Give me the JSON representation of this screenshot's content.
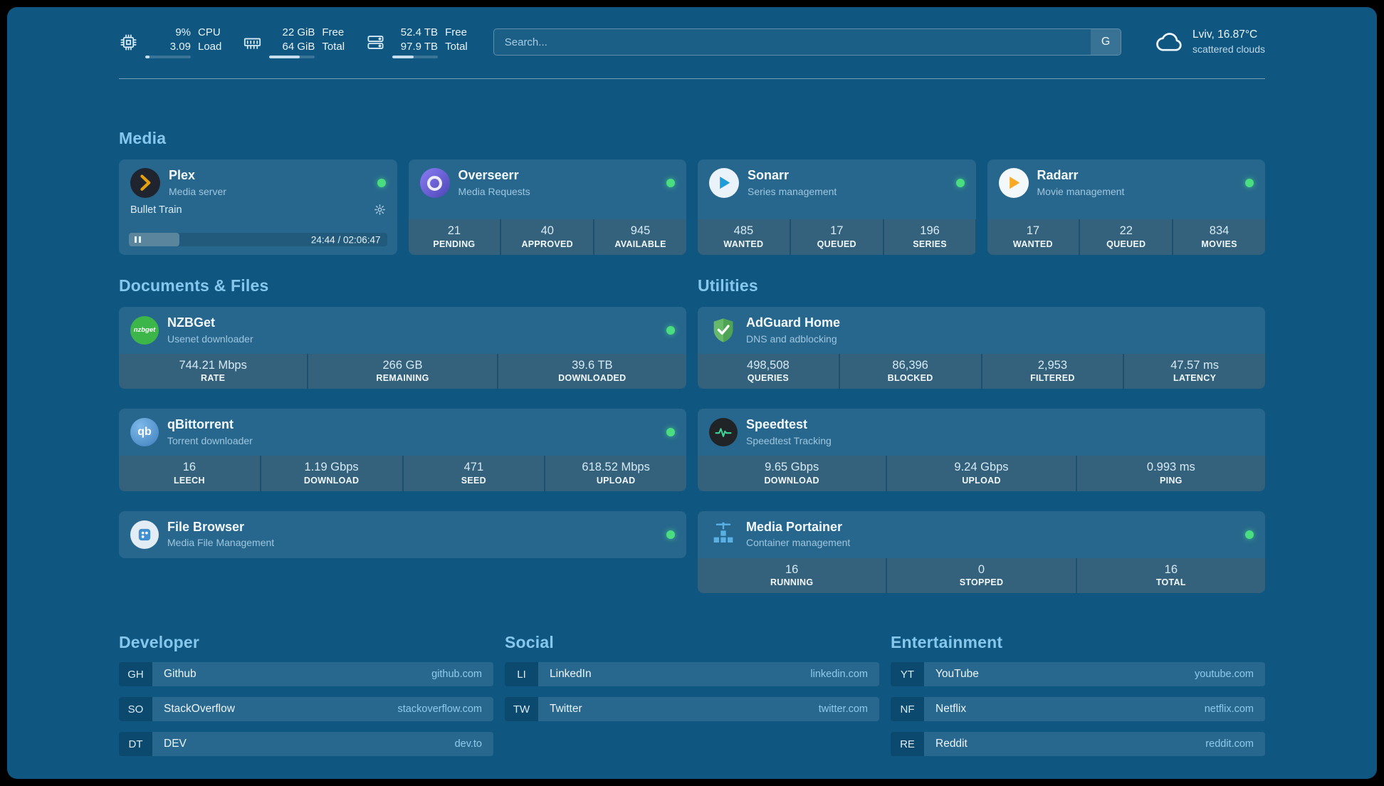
{
  "colors": {
    "background": "#0f5680",
    "heading": "#86c8ed",
    "status_online": "#4ade80",
    "plex_accent": "#e5a00d"
  },
  "topbar": {
    "cpu": {
      "icon": "cpu-icon",
      "value1": "9%",
      "value2": "3.09",
      "label1": "CPU",
      "label2": "Load",
      "progress": 9
    },
    "memory": {
      "icon": "memory-icon",
      "value1": "22 GiB",
      "value2": "64 GiB",
      "label1": "Free",
      "label2": "Total",
      "progress": 66
    },
    "disk": {
      "icon": "disk-icon",
      "value1": "52.4 TB",
      "value2": "97.9 TB",
      "label1": "Free",
      "label2": "Total",
      "progress": 46
    },
    "search": {
      "placeholder": "Search...",
      "engine_button": "G"
    },
    "weather": {
      "icon": "cloud-icon",
      "location": "Lviv, 16.87°C",
      "condition": "scattered clouds"
    }
  },
  "sections": {
    "media": {
      "title": "Media",
      "plex": {
        "name": "Plex",
        "description": "Media server",
        "status": "online",
        "now_playing": {
          "title": "Bullet Train",
          "time": "24:44 / 02:06:47",
          "progress": 19.5
        }
      },
      "overseerr": {
        "name": "Overseerr",
        "description": "Media Requests",
        "status": "online",
        "stats": [
          {
            "value": "21",
            "label": "PENDING"
          },
          {
            "value": "40",
            "label": "APPROVED"
          },
          {
            "value": "945",
            "label": "AVAILABLE"
          }
        ]
      },
      "sonarr": {
        "name": "Sonarr",
        "description": "Series management",
        "status": "online",
        "stats": [
          {
            "value": "485",
            "label": "WANTED"
          },
          {
            "value": "17",
            "label": "QUEUED"
          },
          {
            "value": "196",
            "label": "SERIES"
          }
        ]
      },
      "radarr": {
        "name": "Radarr",
        "description": "Movie management",
        "status": "online",
        "stats": [
          {
            "value": "17",
            "label": "WANTED"
          },
          {
            "value": "22",
            "label": "QUEUED"
          },
          {
            "value": "834",
            "label": "MOVIES"
          }
        ]
      }
    },
    "documents": {
      "title": "Documents & Files",
      "nzbget": {
        "name": "NZBGet",
        "description": "Usenet downloader",
        "status": "online",
        "icon_text": "nzbget",
        "stats": [
          {
            "value": "744.21 Mbps",
            "label": "RATE"
          },
          {
            "value": "266 GB",
            "label": "REMAINING"
          },
          {
            "value": "39.6 TB",
            "label": "DOWNLOADED"
          }
        ]
      },
      "qbittorrent": {
        "name": "qBittorrent",
        "description": "Torrent downloader",
        "status": "online",
        "icon_text": "qb",
        "stats": [
          {
            "value": "16",
            "label": "LEECH"
          },
          {
            "value": "1.19 Gbps",
            "label": "DOWNLOAD"
          },
          {
            "value": "471",
            "label": "SEED"
          },
          {
            "value": "618.52 Mbps",
            "label": "UPLOAD"
          }
        ]
      },
      "filebrowser": {
        "name": "File Browser",
        "description": "Media File Management",
        "status": "online"
      }
    },
    "utilities": {
      "title": "Utilities",
      "adguard": {
        "name": "AdGuard Home",
        "description": "DNS and adblocking",
        "stats": [
          {
            "value": "498,508",
            "label": "QUERIES"
          },
          {
            "value": "86,396",
            "label": "BLOCKED"
          },
          {
            "value": "2,953",
            "label": "FILTERED"
          },
          {
            "value": "47.57 ms",
            "label": "LATENCY"
          }
        ]
      },
      "speedtest": {
        "name": "Speedtest",
        "description": "Speedtest Tracking",
        "stats": [
          {
            "value": "9.65 Gbps",
            "label": "DOWNLOAD"
          },
          {
            "value": "9.24 Gbps",
            "label": "UPLOAD"
          },
          {
            "value": "0.993 ms",
            "label": "PING"
          }
        ]
      },
      "portainer": {
        "name": "Media Portainer",
        "description": "Container management",
        "status": "online",
        "stats": [
          {
            "value": "16",
            "label": "RUNNING"
          },
          {
            "value": "0",
            "label": "STOPPED"
          },
          {
            "value": "16",
            "label": "TOTAL"
          }
        ]
      }
    },
    "bookmarks": {
      "developer": {
        "title": "Developer",
        "items": [
          {
            "abbr": "GH",
            "name": "Github",
            "url": "github.com"
          },
          {
            "abbr": "SO",
            "name": "StackOverflow",
            "url": "stackoverflow.com"
          },
          {
            "abbr": "DT",
            "name": "DEV",
            "url": "dev.to"
          }
        ]
      },
      "social": {
        "title": "Social",
        "items": [
          {
            "abbr": "LI",
            "name": "LinkedIn",
            "url": "linkedin.com"
          },
          {
            "abbr": "TW",
            "name": "Twitter",
            "url": "twitter.com"
          }
        ]
      },
      "entertainment": {
        "title": "Entertainment",
        "items": [
          {
            "abbr": "YT",
            "name": "YouTube",
            "url": "youtube.com"
          },
          {
            "abbr": "NF",
            "name": "Netflix",
            "url": "netflix.com"
          },
          {
            "abbr": "RE",
            "name": "Reddit",
            "url": "reddit.com"
          }
        ]
      }
    }
  }
}
